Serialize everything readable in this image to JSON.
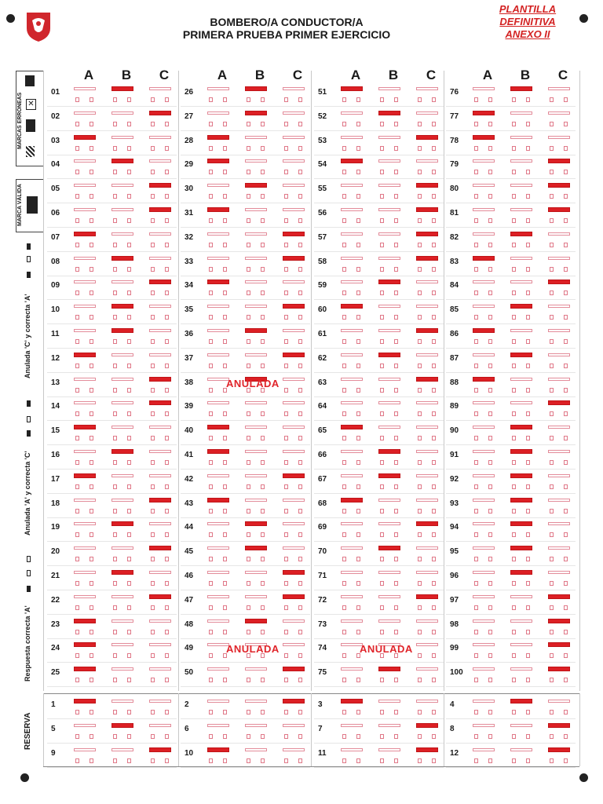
{
  "header": {
    "line1": "BOMBERO/A CONDUCTOR/A",
    "line2": "PRIMERA PRUEBA PRIMER EJERCICIO",
    "stamp": [
      "PLANTILLA",
      "DEFINITIVA",
      "ANEXO II"
    ]
  },
  "options": [
    "A",
    "B",
    "C"
  ],
  "side_labels": {
    "erroneas": "MARCAS ERRÓNEAS",
    "valida": "MARCA VÁLIDA",
    "anul_c": "Anulada 'C' y correcta 'A'",
    "anul_a": "Anulada 'A' y correcta 'C'",
    "resp_a": "Respuesta correcta 'A'",
    "reserva": "RESERVA"
  },
  "anulada_label": "ANULADA",
  "answers": [
    "B",
    "C",
    "A",
    "B",
    "C",
    "C",
    "A",
    "B",
    "C",
    "B",
    "B",
    "A",
    "C",
    "C",
    "A",
    "B",
    "A",
    "C",
    "B",
    "C",
    "B",
    "C",
    "A",
    "A",
    "A",
    "B",
    "B",
    "A",
    "A",
    "B",
    "A",
    "C",
    "C",
    "A",
    "C",
    "B",
    "C",
    "B",
    "",
    "A",
    "A",
    "C",
    "A",
    "B",
    "B",
    "C",
    "C",
    "B",
    "",
    "C",
    "A",
    "B",
    "C",
    "A",
    "C",
    "C",
    "C",
    "C",
    "B",
    "A",
    "C",
    "B",
    "C",
    "",
    "A",
    "B",
    "B",
    "A",
    "C",
    "B",
    "",
    "C",
    "",
    "",
    "B",
    "B",
    "A",
    "A",
    "C",
    "C",
    "C",
    "B",
    "A",
    "C",
    "B",
    "A",
    "B",
    "A",
    "C",
    "B",
    "B",
    "B",
    "B",
    "B",
    "B",
    "B",
    "C",
    "C",
    "C",
    "C"
  ],
  "numbers": [
    "01",
    "02",
    "03",
    "04",
    "05",
    "06",
    "07",
    "08",
    "09",
    "10",
    "11",
    "12",
    "13",
    "14",
    "15",
    "16",
    "17",
    "18",
    "19",
    "20",
    "21",
    "22",
    "23",
    "24",
    "25",
    "26",
    "27",
    "28",
    "29",
    "30",
    "31",
    "32",
    "33",
    "34",
    "35",
    "36",
    "37",
    "38",
    "39",
    "40",
    "41",
    "42",
    "43",
    "44",
    "45",
    "46",
    "47",
    "48",
    "49",
    "50",
    "51",
    "52",
    "53",
    "54",
    "55",
    "56",
    "57",
    "58",
    "59",
    "60",
    "61",
    "62",
    "63",
    "64",
    "65",
    "66",
    "67",
    "68",
    "69",
    "70",
    "71",
    "72",
    "73",
    "74",
    "75",
    "76",
    "77",
    "78",
    "79",
    "80",
    "81",
    "82",
    "83",
    "84",
    "85",
    "86",
    "87",
    "88",
    "89",
    "90",
    "91",
    "92",
    "93",
    "94",
    "95",
    "96",
    "97",
    "98",
    "99",
    "100"
  ],
  "anuladas": [
    "38",
    "49",
    "74"
  ],
  "reserva": {
    "numbers": [
      "1",
      "2",
      "3",
      "4",
      "5",
      "6",
      "7",
      "8",
      "9",
      "10",
      "11",
      "12"
    ],
    "answers": [
      "A",
      "C",
      "A",
      "B",
      "B",
      "",
      "C",
      "C",
      "C",
      "A",
      "C",
      "C"
    ]
  }
}
